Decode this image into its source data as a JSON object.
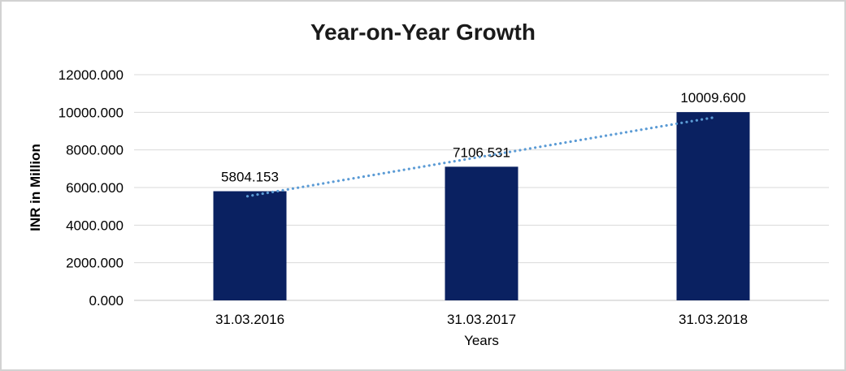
{
  "chart_data": {
    "type": "bar",
    "title": "Year-on-Year Growth",
    "xlabel": "Years",
    "ylabel": "INR in Million",
    "categories": [
      "31.03.2016",
      "31.03.2017",
      "31.03.2018"
    ],
    "values": [
      5804.153,
      7106.531,
      10009.6
    ],
    "data_labels": [
      "5804.153",
      "7106.531",
      "10009.600"
    ],
    "ylim": [
      0,
      12000
    ],
    "ytick_step": 2000,
    "ytick_labels": [
      "0.000",
      "2000.000",
      "4000.000",
      "6000.000",
      "8000.000",
      "10000.000",
      "12000.000"
    ],
    "grid": true,
    "legend_position": "none",
    "trendline": {
      "type": "linear",
      "style": "dotted",
      "color": "#5b9bd5"
    },
    "colors": {
      "bar": "#0a2161",
      "gridline": "#d9d9d9",
      "axis_line": "#c6c6c6",
      "text": "#000000",
      "title": "#1a1a1a",
      "background": "#ffffff",
      "border": "#d2d2d2"
    }
  }
}
